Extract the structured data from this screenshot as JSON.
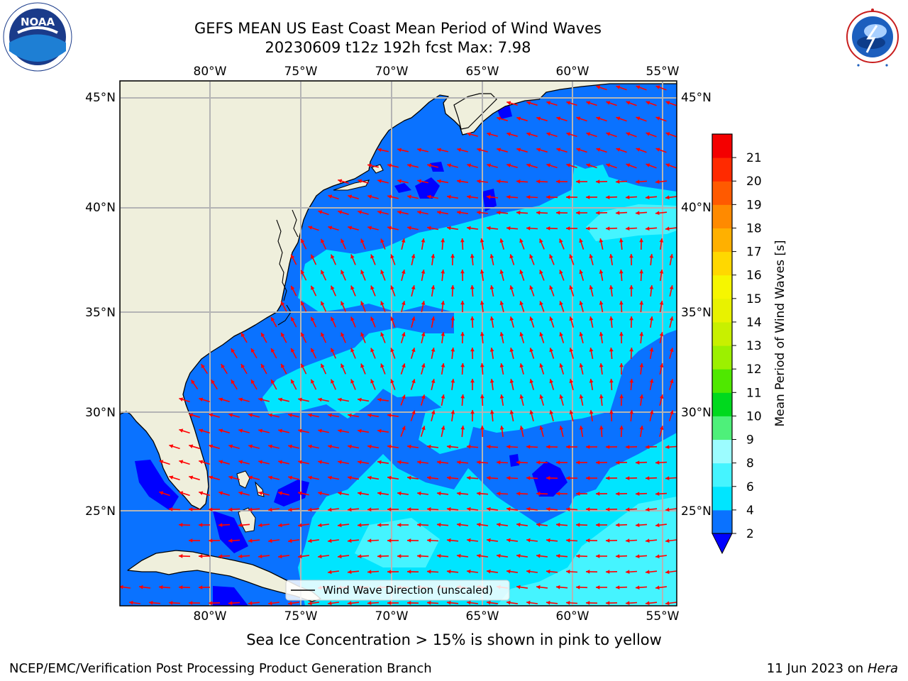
{
  "title_line1": "GEFS MEAN US East Coast Mean Period of Wind Waves",
  "title_line2": "20230609 t12z 192h fcst   Max: 7.98",
  "lon_ticks": [
    "80°W",
    "75°W",
    "70°W",
    "65°W",
    "60°W",
    "55°W"
  ],
  "lat_ticks": [
    "45°N",
    "40°N",
    "35°N",
    "30°N",
    "25°N"
  ],
  "legend_label": "Wind Wave Direction (unscaled)",
  "colorbar": {
    "label": "Mean Period of Wind Waves [s]",
    "ticks": [
      "2",
      "4",
      "6",
      "8",
      "9",
      "10",
      "11",
      "12",
      "13",
      "14",
      "15",
      "16",
      "17",
      "18",
      "19",
      "20",
      "21"
    ],
    "colors": [
      "#0a72ff",
      "#00e5ff",
      "#45f4ff",
      "#9cfcff",
      "#4ef07a",
      "#00d91e",
      "#4fe800",
      "#9cf000",
      "#c8f000",
      "#e8f200",
      "#f6f600",
      "#ffd800",
      "#ffb000",
      "#ff8a00",
      "#ff5a00",
      "#ff2a00",
      "#f40000"
    ],
    "under_color": "#0000ff"
  },
  "ice_note": "Sea Ice Concentration > 15% is shown in pink to yellow",
  "footer_left": "NCEP/EMC/Verification Post Processing Product Generation Branch",
  "footer_date": "11 Jun 2023 on",
  "footer_machine": "Hera",
  "logos": {
    "left": "NOAA",
    "right": "NATIONAL WEATHER SERVICE"
  },
  "colors": {
    "land": "#efefdc",
    "grid": "#b4b4b4",
    "arrow": "#ff0000"
  }
}
